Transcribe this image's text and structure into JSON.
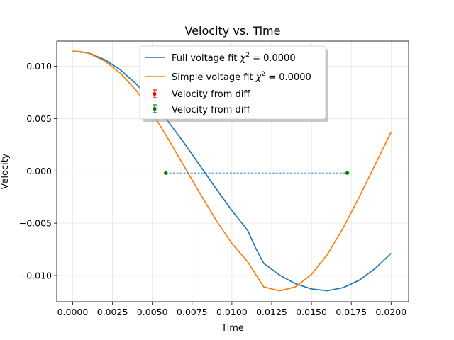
{
  "chart_data": {
    "type": "line",
    "title": "Velocity vs. Time",
    "xlabel": "Time",
    "ylabel": "Velocity",
    "xlim": [
      -0.001,
      0.0211
    ],
    "ylim": [
      -0.0125,
      0.0124
    ],
    "xticks": [
      "0.0000",
      "0.0025",
      "0.0050",
      "0.0075",
      "0.0100",
      "0.0125",
      "0.0150",
      "0.0175",
      "0.0200"
    ],
    "xtick_values": [
      0.0,
      0.0025,
      0.005,
      0.0075,
      0.01,
      0.0125,
      0.015,
      0.0175,
      0.02
    ],
    "yticks": [
      "−0.010",
      "−0.005",
      "0.000",
      "0.005",
      "0.010"
    ],
    "ytick_values": [
      -0.01,
      -0.005,
      0.0,
      0.005,
      0.01
    ],
    "grid": true,
    "legend_position": "top-center",
    "series": [
      {
        "name": "Full voltage fit",
        "legend_label": "Full voltage fit",
        "chi_label": "= 0.0000",
        "color": "#1f77b4",
        "kind": "line",
        "x": [
          0.0,
          0.001,
          0.002,
          0.003,
          0.004,
          0.005,
          0.006,
          0.007,
          0.008,
          0.009,
          0.01,
          0.011,
          0.0115,
          0.012,
          0.013,
          0.014,
          0.015,
          0.016,
          0.017,
          0.018,
          0.019,
          0.02
        ],
        "y": [
          0.01145,
          0.01126,
          0.01064,
          0.00966,
          0.00829,
          0.00662,
          0.00472,
          0.00267,
          0.0005,
          -0.00168,
          -0.00379,
          -0.00571,
          -0.0074,
          -0.00883,
          -0.00996,
          -0.01078,
          -0.01128,
          -0.01145,
          -0.01115,
          -0.01044,
          -0.00933,
          -0.00787
        ]
      },
      {
        "name": "Simple voltage fit",
        "legend_label": "Simple voltage fit",
        "chi_label": "= 0.0000",
        "color": "#ff7f0e",
        "kind": "line",
        "x": [
          0.0,
          0.0005,
          0.001,
          0.002,
          0.003,
          0.004,
          0.005,
          0.006,
          0.007,
          0.008,
          0.009,
          0.01,
          0.011,
          0.0115,
          0.012,
          0.013,
          0.014,
          0.015,
          0.016,
          0.017,
          0.018,
          0.019,
          0.02
        ],
        "y": [
          0.01145,
          0.0114,
          0.01123,
          0.01052,
          0.00933,
          0.00767,
          0.00555,
          0.00306,
          0.00045,
          -0.00217,
          -0.00469,
          -0.00693,
          -0.0087,
          -0.0099,
          -0.01108,
          -0.01146,
          -0.01108,
          -0.0099,
          -0.00797,
          -0.00543,
          -0.00249,
          0.0006,
          0.0037
        ]
      },
      {
        "name": "Velocity from diff",
        "legend_label": "Velocity from diff",
        "color": "#ff0000",
        "kind": "errorbar",
        "x": [],
        "y": []
      },
      {
        "name": "Velocity from diff",
        "legend_label": "Velocity from diff",
        "color": "#008000",
        "kind": "errorbar",
        "x": [
          0.00585,
          0.01725
        ],
        "y": [
          -0.0002,
          -0.0002
        ]
      }
    ]
  }
}
